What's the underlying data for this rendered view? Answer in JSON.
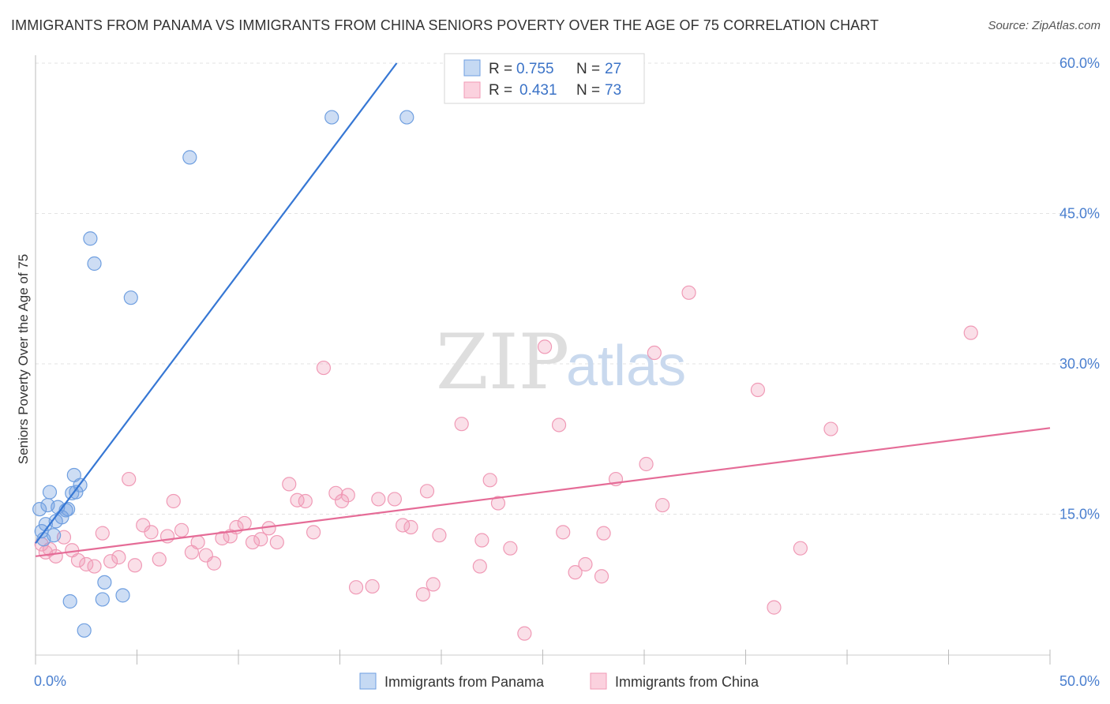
{
  "title": "IMMIGRANTS FROM PANAMA VS IMMIGRANTS FROM CHINA SENIORS POVERTY OVER THE AGE OF 75 CORRELATION CHART",
  "source": "Source: ZipAtlas.com",
  "watermark": {
    "zip": "ZIP",
    "atlas": "atlas"
  },
  "legend": {
    "r_label": "R =",
    "n_label": "N =",
    "rows": [
      {
        "r": "0.755",
        "n": "27"
      },
      {
        "r": "0.431",
        "n": "73"
      }
    ]
  },
  "bottom_legend": [
    "Immigrants from Panama",
    "Immigrants from China"
  ],
  "chart_data": {
    "type": "scatter",
    "title": "IMMIGRANTS FROM PANAMA VS IMMIGRANTS FROM CHINA SENIORS POVERTY OVER THE AGE OF 75 CORRELATION CHART",
    "xlabel": "",
    "ylabel": "Seniors Poverty Over the Age of 75",
    "xlim": [
      0,
      50
    ],
    "ylim": [
      0,
      60
    ],
    "x_tick_labels": [
      "0.0%",
      "50.0%"
    ],
    "y_ticks": [
      15,
      30,
      45,
      60
    ],
    "y_tick_labels": [
      "15.0%",
      "30.0%",
      "45.0%",
      "60.0%"
    ],
    "grid": true,
    "legend_position": "top-center",
    "colors": {
      "panama": "#6f9fe0",
      "china": "#f09ab6",
      "panama_line": "#3677d4",
      "china_line": "#e56c97"
    },
    "series": [
      {
        "name": "Immigrants from Panama",
        "r": 0.755,
        "n": 27,
        "trend": {
          "x": [
            0.0,
            17.8
          ],
          "y": [
            12.1,
            60.0
          ]
        },
        "points": [
          {
            "x": 0.2,
            "y": 15.5
          },
          {
            "x": 0.3,
            "y": 13.3
          },
          {
            "x": 0.4,
            "y": 12.5
          },
          {
            "x": 0.5,
            "y": 14.0
          },
          {
            "x": 0.6,
            "y": 15.9
          },
          {
            "x": 0.7,
            "y": 17.2
          },
          {
            "x": 0.9,
            "y": 12.9
          },
          {
            "x": 1.0,
            "y": 14.3
          },
          {
            "x": 1.1,
            "y": 15.7
          },
          {
            "x": 1.3,
            "y": 14.7
          },
          {
            "x": 1.5,
            "y": 15.4
          },
          {
            "x": 1.6,
            "y": 15.5
          },
          {
            "x": 1.7,
            "y": 6.3
          },
          {
            "x": 1.8,
            "y": 17.1
          },
          {
            "x": 1.9,
            "y": 18.9
          },
          {
            "x": 2.0,
            "y": 17.2
          },
          {
            "x": 2.2,
            "y": 17.9
          },
          {
            "x": 2.4,
            "y": 3.4
          },
          {
            "x": 2.7,
            "y": 42.5
          },
          {
            "x": 2.9,
            "y": 40.0
          },
          {
            "x": 3.3,
            "y": 6.5
          },
          {
            "x": 3.4,
            "y": 8.2
          },
          {
            "x": 4.3,
            "y": 6.9
          },
          {
            "x": 4.7,
            "y": 36.6
          },
          {
            "x": 7.6,
            "y": 50.6
          },
          {
            "x": 14.6,
            "y": 54.6
          },
          {
            "x": 18.3,
            "y": 54.6
          }
        ]
      },
      {
        "name": "Immigrants from China",
        "r": 0.431,
        "n": 73,
        "trend": {
          "x": [
            0.0,
            50.0
          ],
          "y": [
            10.8,
            23.6
          ]
        },
        "points": [
          {
            "x": 0.3,
            "y": 12.0
          },
          {
            "x": 0.5,
            "y": 11.2
          },
          {
            "x": 0.7,
            "y": 11.5
          },
          {
            "x": 1.0,
            "y": 10.8
          },
          {
            "x": 1.4,
            "y": 12.7
          },
          {
            "x": 1.8,
            "y": 11.4
          },
          {
            "x": 2.1,
            "y": 10.4
          },
          {
            "x": 2.5,
            "y": 10.0
          },
          {
            "x": 2.9,
            "y": 9.8
          },
          {
            "x": 3.3,
            "y": 13.1
          },
          {
            "x": 3.7,
            "y": 10.3
          },
          {
            "x": 4.1,
            "y": 10.7
          },
          {
            "x": 4.6,
            "y": 18.5
          },
          {
            "x": 4.9,
            "y": 9.9
          },
          {
            "x": 5.3,
            "y": 13.9
          },
          {
            "x": 5.7,
            "y": 13.2
          },
          {
            "x": 6.1,
            "y": 10.5
          },
          {
            "x": 6.5,
            "y": 12.8
          },
          {
            "x": 6.8,
            "y": 16.3
          },
          {
            "x": 7.2,
            "y": 13.4
          },
          {
            "x": 7.7,
            "y": 11.2
          },
          {
            "x": 8.0,
            "y": 12.2
          },
          {
            "x": 8.4,
            "y": 10.9
          },
          {
            "x": 8.8,
            "y": 10.1
          },
          {
            "x": 9.2,
            "y": 12.6
          },
          {
            "x": 9.6,
            "y": 12.8
          },
          {
            "x": 9.9,
            "y": 13.7
          },
          {
            "x": 10.3,
            "y": 14.1
          },
          {
            "x": 10.7,
            "y": 12.2
          },
          {
            "x": 11.1,
            "y": 12.5
          },
          {
            "x": 11.5,
            "y": 13.6
          },
          {
            "x": 11.9,
            "y": 12.2
          },
          {
            "x": 12.5,
            "y": 18.0
          },
          {
            "x": 12.9,
            "y": 16.4
          },
          {
            "x": 13.3,
            "y": 16.3
          },
          {
            "x": 13.7,
            "y": 13.2
          },
          {
            "x": 14.2,
            "y": 29.6
          },
          {
            "x": 14.8,
            "y": 17.1
          },
          {
            "x": 15.1,
            "y": 16.3
          },
          {
            "x": 15.4,
            "y": 16.9
          },
          {
            "x": 15.8,
            "y": 7.7
          },
          {
            "x": 16.6,
            "y": 7.8
          },
          {
            "x": 16.9,
            "y": 16.5
          },
          {
            "x": 17.7,
            "y": 16.5
          },
          {
            "x": 18.1,
            "y": 13.9
          },
          {
            "x": 18.5,
            "y": 13.7
          },
          {
            "x": 19.1,
            "y": 7.0
          },
          {
            "x": 19.3,
            "y": 17.3
          },
          {
            "x": 19.6,
            "y": 8.0
          },
          {
            "x": 19.9,
            "y": 12.9
          },
          {
            "x": 21.0,
            "y": 24.0
          },
          {
            "x": 21.9,
            "y": 9.8
          },
          {
            "x": 22.0,
            "y": 12.4
          },
          {
            "x": 22.4,
            "y": 18.4
          },
          {
            "x": 22.8,
            "y": 16.1
          },
          {
            "x": 23.4,
            "y": 11.6
          },
          {
            "x": 24.1,
            "y": 3.1
          },
          {
            "x": 25.1,
            "y": 31.7
          },
          {
            "x": 25.8,
            "y": 23.9
          },
          {
            "x": 26.0,
            "y": 13.2
          },
          {
            "x": 26.6,
            "y": 9.2
          },
          {
            "x": 27.1,
            "y": 10.0
          },
          {
            "x": 27.9,
            "y": 8.8
          },
          {
            "x": 28.0,
            "y": 13.1
          },
          {
            "x": 28.6,
            "y": 18.5
          },
          {
            "x": 30.1,
            "y": 20.0
          },
          {
            "x": 30.5,
            "y": 31.1
          },
          {
            "x": 30.9,
            "y": 15.9
          },
          {
            "x": 32.2,
            "y": 37.1
          },
          {
            "x": 35.6,
            "y": 27.4
          },
          {
            "x": 36.4,
            "y": 5.7
          },
          {
            "x": 37.7,
            "y": 11.6
          },
          {
            "x": 39.2,
            "y": 23.5
          },
          {
            "x": 46.1,
            "y": 33.1
          }
        ]
      }
    ]
  }
}
